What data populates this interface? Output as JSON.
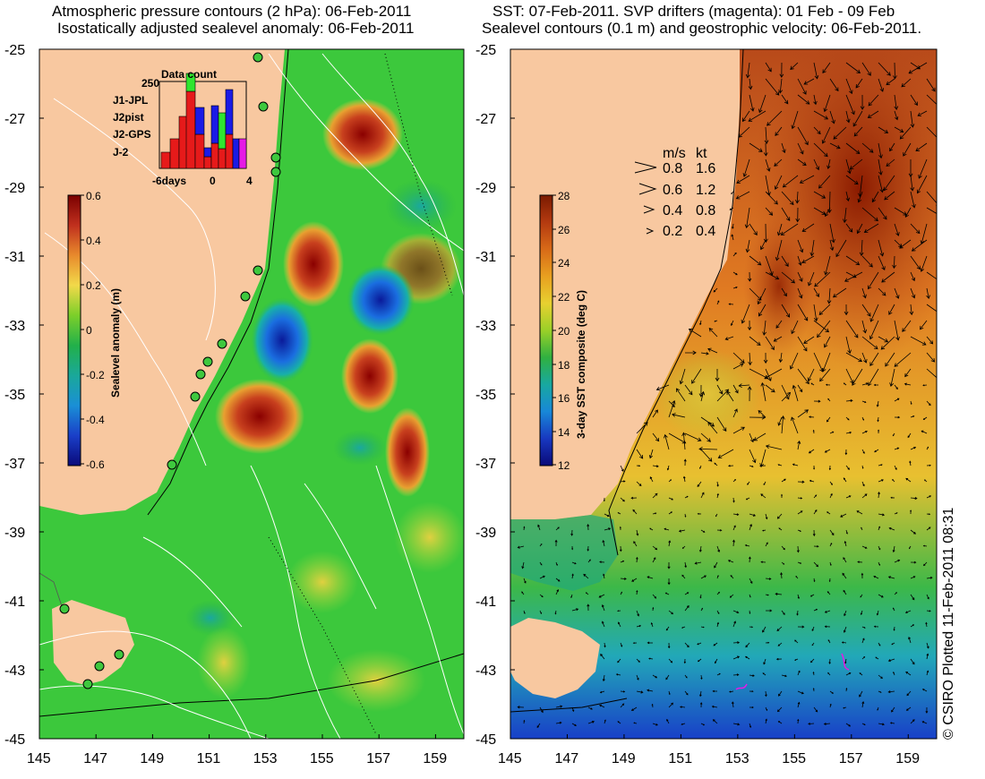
{
  "left_panel": {
    "title_line1": "Atmospheric pressure contours (2 hPa): 06-Feb-2011",
    "title_line2": "Isostatically adjusted sealevel anomaly: 06-Feb-2011",
    "colorbar": {
      "label": "Sealevel anomaly (m)",
      "ticks": [
        "0.6",
        "0.4",
        "0.2",
        "0",
        "-0.2",
        "-0.4",
        "-0.6"
      ],
      "colors_top_to_bottom": [
        "#7a0000",
        "#c0301e",
        "#e88a2c",
        "#f2d94a",
        "#7ccf2a",
        "#22b04a",
        "#1aa89a",
        "#1a8fd6",
        "#1a3fc8",
        "#0a0a7a"
      ]
    },
    "inset": {
      "title": "Data count",
      "y_tick": "250",
      "x_ticks": [
        "-6days",
        "0",
        "4"
      ],
      "legend": [
        {
          "name": "J1-JPL",
          "color": "#1a1ae6"
        },
        {
          "name": "J2pist",
          "color": "#2fe62f"
        },
        {
          "name": "J2-GPS",
          "color": "#e61ae6"
        },
        {
          "name": "J-2",
          "color": "#e61a1a"
        }
      ]
    }
  },
  "right_panel": {
    "title_line1": "SST: 07-Feb-2011. SVP drifters (magenta): 01 Feb - 09 Feb",
    "title_line2": "Sealevel contours (0.1 m) and geostrophic velocity: 06-Feb-2011.",
    "colorbar": {
      "label": "3-day SST composite (deg C)",
      "ticks": [
        "28",
        "26",
        "24",
        "22",
        "20",
        "18",
        "16",
        "14",
        "12"
      ],
      "colors_top_to_bottom": [
        "#7a1a00",
        "#b43a10",
        "#d86a18",
        "#e8a020",
        "#e8d030",
        "#9ad028",
        "#30b040",
        "#18a8a0",
        "#1888d8",
        "#1838c0",
        "#0a0a78"
      ]
    },
    "velocity_key": {
      "header_ms": "m/s",
      "header_kt": "kt",
      "rows": [
        {
          "ms": "0.8",
          "kt": "1.6"
        },
        {
          "ms": "0.6",
          "kt": "1.2"
        },
        {
          "ms": "0.4",
          "kt": "0.8"
        },
        {
          "ms": "0.2",
          "kt": "0.4"
        }
      ]
    }
  },
  "axes": {
    "latitude_ticks": [
      "-25",
      "-27",
      "-29",
      "-31",
      "-33",
      "-35",
      "-37",
      "-39",
      "-41",
      "-43",
      "-45"
    ],
    "longitude_ticks": [
      "145",
      "147",
      "149",
      "151",
      "153",
      "155",
      "157",
      "159"
    ]
  },
  "colors": {
    "land": "#f8c8a0",
    "ocean_base_left": "#3cc83c",
    "ocean_base_right": "#e89030"
  },
  "credit": "© CSIRO Plotted 11-Feb-2011 08:31"
}
